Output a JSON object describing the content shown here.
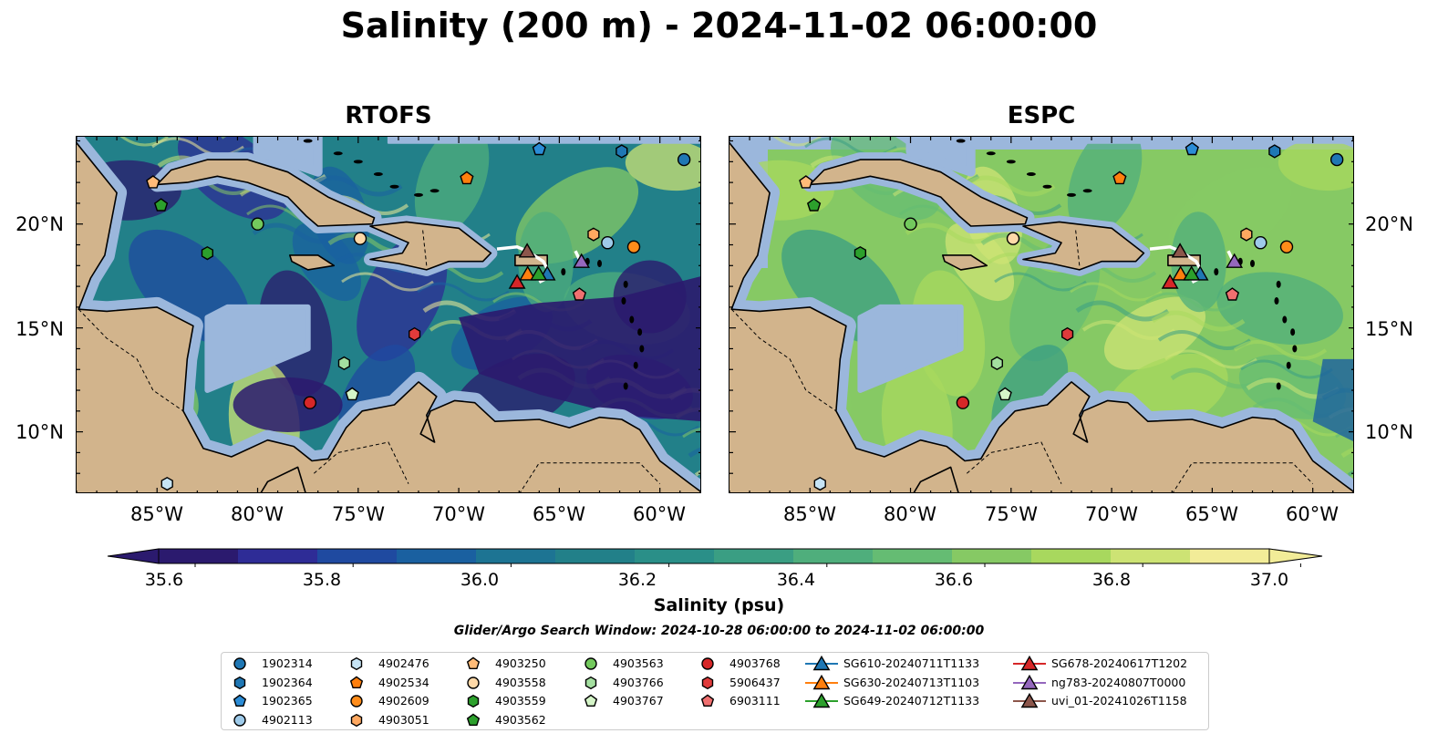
{
  "title": "Salinity (200 m) - 2024-11-02 06:00:00",
  "panels": [
    {
      "title": "RTOFS",
      "model": "rtofs"
    },
    {
      "title": "ESPC",
      "model": "espc"
    }
  ],
  "lon_ticks": [
    "85°W",
    "80°W",
    "75°W",
    "70°W",
    "65°W",
    "60°W"
  ],
  "lat_ticks": [
    "20°N",
    "15°N",
    "10°N"
  ],
  "colorbar": {
    "ticks": [
      "35.6",
      "35.8",
      "36.0",
      "36.2",
      "36.4",
      "36.6",
      "36.8",
      "37.0"
    ],
    "label": "Salinity (psu)",
    "min": 35.6,
    "max": 37.0,
    "colors": [
      "#2b1a6e",
      "#2e2c96",
      "#1f4aa0",
      "#1a60a0",
      "#1d7493",
      "#228089",
      "#2a8f88",
      "#3a9e83",
      "#4fae7c",
      "#65bc73",
      "#86c964",
      "#a8d85e",
      "#cde374",
      "#f2ec98"
    ]
  },
  "search_window": "Glider/Argo Search Window: 2024-10-28 06:00:00 to 2024-11-02 06:00:00",
  "map_colors": {
    "land": "#d2b48c",
    "shelf": "#9bb7dc",
    "deep_rtofs": "#2b1a6e"
  },
  "legend": [
    {
      "label": "1902314",
      "marker": "circle",
      "color": "#1f77b4"
    },
    {
      "label": "1902364",
      "marker": "hexagon",
      "color": "#1f77b4"
    },
    {
      "label": "1902365",
      "marker": "pentagon",
      "color": "#2b8cd6"
    },
    {
      "label": "4902113",
      "marker": "circle",
      "color": "#9ecae9"
    },
    {
      "label": "4902476",
      "marker": "hexagon",
      "color": "#c6e4f5"
    },
    {
      "label": "4902534",
      "marker": "pentagon",
      "color": "#ff7f0e"
    },
    {
      "label": "4902609",
      "marker": "circle",
      "color": "#ff8c1a"
    },
    {
      "label": "4903051",
      "marker": "hexagon",
      "color": "#ffa860"
    },
    {
      "label": "4903250",
      "marker": "pentagon",
      "color": "#ffbb78"
    },
    {
      "label": "4903558",
      "marker": "circle",
      "color": "#ffd9a8"
    },
    {
      "label": "4903559",
      "marker": "hexagon",
      "color": "#2ca02c"
    },
    {
      "label": "4903562",
      "marker": "pentagon",
      "color": "#2ca02c"
    },
    {
      "label": "4903563",
      "marker": "circle",
      "color": "#73c95d"
    },
    {
      "label": "4903766",
      "marker": "hexagon",
      "color": "#a4dfa0"
    },
    {
      "label": "4903767",
      "marker": "pentagon",
      "color": "#d5f5c8"
    },
    {
      "label": "4903768",
      "marker": "circle",
      "color": "#d62728"
    },
    {
      "label": "5906437",
      "marker": "hexagon",
      "color": "#e03b3b"
    },
    {
      "label": "6903111",
      "marker": "pentagon",
      "color": "#f07070"
    },
    {
      "label": "SG610-20240711T1133",
      "marker": "triangle-line",
      "color": "#1f77b4"
    },
    {
      "label": "SG630-20240713T1103",
      "marker": "triangle-line",
      "color": "#ff7f0e"
    },
    {
      "label": "SG649-20240712T1133",
      "marker": "triangle-line",
      "color": "#2ca02c"
    },
    {
      "label": "SG678-20240617T1202",
      "marker": "triangle-line",
      "color": "#d62728"
    },
    {
      "label": "ng783-20240807T0000",
      "marker": "triangle-line",
      "color": "#9467bd"
    },
    {
      "label": "uvi_01-20241026T1158",
      "marker": "triangle-line",
      "color": "#8c564b"
    }
  ],
  "observations": [
    {
      "id": "1902314",
      "lon": -58.8,
      "lat": 23.1,
      "marker": "circle",
      "color": "#1f77b4"
    },
    {
      "id": "1902364",
      "lon": -61.9,
      "lat": 23.5,
      "marker": "hexagon",
      "color": "#1f77b4"
    },
    {
      "id": "1902365",
      "lon": -66.0,
      "lat": 23.6,
      "marker": "pentagon",
      "color": "#2b8cd6"
    },
    {
      "id": "4902113",
      "lon": -62.6,
      "lat": 19.1,
      "marker": "circle",
      "color": "#9ecae9"
    },
    {
      "id": "4902476",
      "lon": -84.5,
      "lat": 7.5,
      "marker": "hexagon",
      "color": "#c6e4f5"
    },
    {
      "id": "4902534",
      "lon": -69.6,
      "lat": 22.2,
      "marker": "pentagon",
      "color": "#ff7f0e"
    },
    {
      "id": "4902609",
      "lon": -61.3,
      "lat": 18.9,
      "marker": "circle",
      "color": "#ff8c1a"
    },
    {
      "id": "4903051",
      "lon": -63.3,
      "lat": 19.5,
      "marker": "hexagon",
      "color": "#ffa860"
    },
    {
      "id": "4903250",
      "lon": -85.2,
      "lat": 22.0,
      "marker": "pentagon",
      "color": "#ffbb78"
    },
    {
      "id": "4903558",
      "lon": -74.9,
      "lat": 19.3,
      "marker": "circle",
      "color": "#ffd9a8"
    },
    {
      "id": "4903559",
      "lon": -82.5,
      "lat": 18.6,
      "marker": "hexagon",
      "color": "#2ca02c"
    },
    {
      "id": "4903562",
      "lon": -84.8,
      "lat": 20.9,
      "marker": "pentagon",
      "color": "#2ca02c"
    },
    {
      "id": "4903563",
      "lon": -80.0,
      "lat": 20.0,
      "marker": "circle",
      "color": "#73c95d"
    },
    {
      "id": "4903766",
      "lon": -75.7,
      "lat": 13.3,
      "marker": "hexagon",
      "color": "#a4dfa0"
    },
    {
      "id": "4903767",
      "lon": -75.3,
      "lat": 11.8,
      "marker": "pentagon",
      "color": "#d5f5c8"
    },
    {
      "id": "4903768",
      "lon": -77.4,
      "lat": 11.4,
      "marker": "circle",
      "color": "#d62728"
    },
    {
      "id": "5906437",
      "lon": -72.2,
      "lat": 14.7,
      "marker": "hexagon",
      "color": "#e03b3b"
    },
    {
      "id": "6903111",
      "lon": -64.0,
      "lat": 16.6,
      "marker": "pentagon",
      "color": "#f07070"
    },
    {
      "id": "SG610-20240711T1133",
      "lon": -65.6,
      "lat": 17.6,
      "marker": "triangle",
      "color": "#1f77b4"
    },
    {
      "id": "SG630-20240713T1103",
      "lon": -66.3,
      "lat": 17.6,
      "marker": "triangle",
      "color": "#ff7f0e"
    },
    {
      "id": "SG649-20240712T1133",
      "lon": -66.3,
      "lat": 17.6,
      "marker": "triangle",
      "color": "#2ca02c"
    },
    {
      "id": "SG678-20240617T1202",
      "lon": -67.1,
      "lat": 17.2,
      "marker": "triangle",
      "color": "#d62728"
    },
    {
      "id": "ng783-20240807T0000",
      "lon": -63.9,
      "lat": 18.2,
      "marker": "triangle",
      "color": "#9467bd"
    },
    {
      "id": "uvi_01-20241026T1158",
      "lon": -66.6,
      "lat": 18.7,
      "marker": "triangle",
      "color": "#8c564b"
    }
  ]
}
